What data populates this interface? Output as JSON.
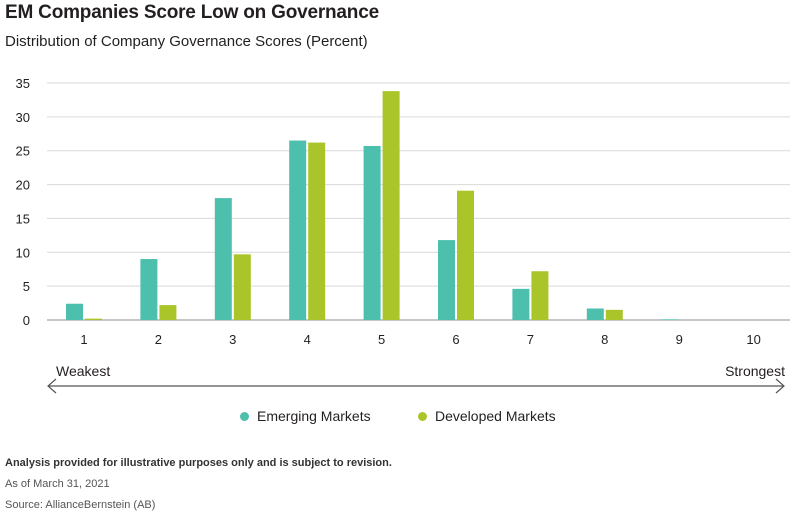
{
  "header": {
    "title": "EM Companies Score Low on Governance",
    "subtitle": "Distribution of Company Governance Scores (Percent)"
  },
  "scale": {
    "left_label": "Weakest",
    "right_label": "Strongest"
  },
  "colors": {
    "emerging": "#4dbfad",
    "developed": "#a9c52a",
    "grid": "#d9d9d9",
    "axis": "#231f20"
  },
  "legend": {
    "items": [
      {
        "label": "Emerging Markets",
        "color": "#4dbfad"
      },
      {
        "label": "Developed Markets",
        "color": "#a9c52a"
      }
    ]
  },
  "footer": {
    "note": "Analysis provided for illustrative purposes only and is subject to revision.",
    "date": "As of March 31, 2021",
    "source": "Source: AllianceBernstein (AB)"
  },
  "chart_data": {
    "type": "bar",
    "title": "EM Companies Score Low on Governance",
    "subtitle": "Distribution of Company Governance Scores (Percent)",
    "categories": [
      "1",
      "2",
      "3",
      "4",
      "5",
      "6",
      "7",
      "8",
      "9",
      "10"
    ],
    "series": [
      {
        "name": "Emerging Markets",
        "values": [
          2.4,
          9.0,
          18.0,
          26.5,
          25.7,
          11.8,
          4.6,
          1.7,
          0.1,
          0.0
        ]
      },
      {
        "name": "Developed Markets",
        "values": [
          0.2,
          2.2,
          9.7,
          26.2,
          33.8,
          19.1,
          7.2,
          1.5,
          0.0,
          0.0
        ]
      }
    ],
    "ylim": [
      0,
      35
    ],
    "yticks": [
      0,
      5,
      10,
      15,
      20,
      25,
      30,
      35
    ],
    "xlabel": "",
    "ylabel": "",
    "grid": true,
    "legend": "bottom-center"
  }
}
